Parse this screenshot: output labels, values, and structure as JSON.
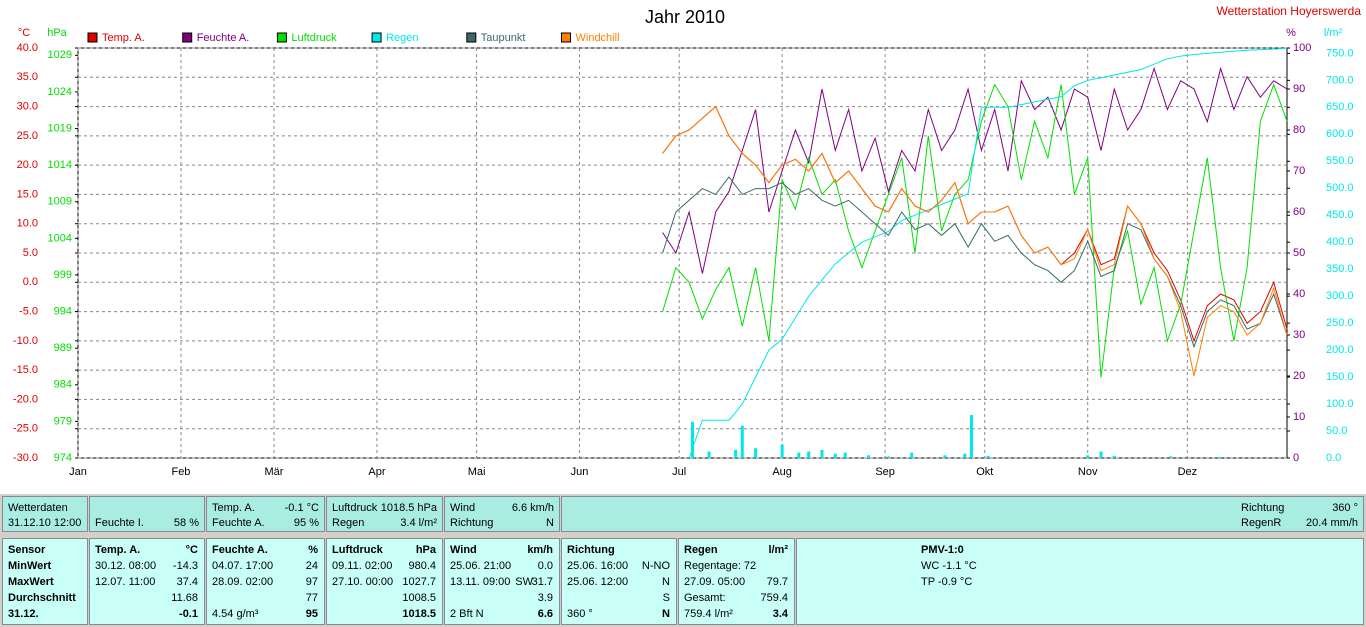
{
  "chart_data": {
    "type": "line",
    "title": "Jahr 2010",
    "station": "Wetterstation Hoyerswerda",
    "y_label": "°C",
    "y3_label": "hPa",
    "y2_label": "%",
    "y4_label": "l/m²",
    "xlim": [
      1,
      365
    ],
    "xticks": [
      {
        "value": 1,
        "label": "Jan"
      },
      {
        "value": 32,
        "label": "Feb"
      },
      {
        "value": 60,
        "label": "Mär"
      },
      {
        "value": 91,
        "label": "Apr"
      },
      {
        "value": 121,
        "label": "Mai"
      },
      {
        "value": 152,
        "label": "Jun"
      },
      {
        "value": 182,
        "label": "Jul"
      },
      {
        "value": 213,
        "label": "Aug"
      },
      {
        "value": 244,
        "label": "Sep"
      },
      {
        "value": 274,
        "label": "Okt"
      },
      {
        "value": 305,
        "label": "Nov"
      },
      {
        "value": 335,
        "label": "Dez"
      }
    ],
    "ylim": [
      -30,
      40
    ],
    "yticks": [
      {
        "value": -30,
        "label": "-30.0"
      },
      {
        "value": -25,
        "label": "-25.0"
      },
      {
        "value": -20,
        "label": "-20.0"
      },
      {
        "value": -15,
        "label": "-15.0"
      },
      {
        "value": -10,
        "label": "-10.0"
      },
      {
        "value": -5,
        "label": "-5.0"
      },
      {
        "value": 0,
        "label": "0.0"
      },
      {
        "value": 5,
        "label": "5.0"
      },
      {
        "value": 10,
        "label": "10.0"
      },
      {
        "value": 15,
        "label": "15.0"
      },
      {
        "value": 20,
        "label": "20.0"
      },
      {
        "value": 25,
        "label": "25.0"
      },
      {
        "value": 30,
        "label": "30.0"
      },
      {
        "value": 35,
        "label": "35.0"
      },
      {
        "value": 40,
        "label": "40.0"
      }
    ],
    "y3lim": [
      974,
      1030
    ],
    "y3ticks": [
      974,
      979,
      984,
      989,
      994,
      999,
      1004,
      1009,
      1014,
      1019,
      1024,
      1029
    ],
    "y2lim": [
      0,
      100
    ],
    "y2ticks": [
      0,
      10,
      20,
      30,
      40,
      50,
      60,
      70,
      80,
      90,
      100
    ],
    "y4lim": [
      0,
      760
    ],
    "y4ticks": [
      {
        "value": 0,
        "label": "0.0"
      },
      {
        "value": 50,
        "label": "50.0"
      },
      {
        "value": 100,
        "label": "100.0"
      },
      {
        "value": 150,
        "label": "150.0"
      },
      {
        "value": 200,
        "label": "200.0"
      },
      {
        "value": 250,
        "label": "250.0"
      },
      {
        "value": 300,
        "label": "300.0"
      },
      {
        "value": 350,
        "label": "350.0"
      },
      {
        "value": 400,
        "label": "400.0"
      },
      {
        "value": 450,
        "label": "450.0"
      },
      {
        "value": 500,
        "label": "500.0"
      },
      {
        "value": 550,
        "label": "550.0"
      },
      {
        "value": 600,
        "label": "600.0"
      },
      {
        "value": 650,
        "label": "650.0"
      },
      {
        "value": 700,
        "label": "700.0"
      },
      {
        "value": 750,
        "label": "750.0"
      }
    ],
    "grid": true,
    "x": [
      177,
      181,
      185,
      189,
      193,
      197,
      201,
      205,
      209,
      213,
      217,
      221,
      225,
      229,
      233,
      237,
      241,
      245,
      249,
      253,
      257,
      261,
      265,
      269,
      273,
      277,
      281,
      285,
      289,
      293,
      297,
      301,
      305,
      309,
      313,
      317,
      321,
      325,
      329,
      333,
      337,
      341,
      345,
      349,
      353,
      357,
      361,
      365
    ],
    "series": [
      {
        "name": "Temp. A.",
        "color": "#e00000",
        "axis": "y",
        "values": [
          22,
          25,
          26,
          28,
          30,
          25,
          22,
          20,
          17,
          20,
          21,
          19,
          22,
          17,
          19,
          16,
          13,
          12,
          16,
          13,
          12,
          14,
          17,
          10,
          12,
          12,
          13,
          8,
          5,
          6,
          3,
          5,
          9,
          3,
          4,
          13,
          10,
          5,
          2,
          -3,
          -10,
          -4,
          -2,
          -3,
          -7,
          -5,
          0,
          -8
        ]
      },
      {
        "name": "Feuchte A.",
        "color": "#800080",
        "axis": "y2",
        "values": [
          55,
          50,
          60,
          45,
          60,
          65,
          75,
          85,
          60,
          70,
          80,
          72,
          90,
          75,
          85,
          70,
          78,
          65,
          75,
          70,
          85,
          75,
          80,
          90,
          75,
          85,
          70,
          92,
          85,
          88,
          80,
          90,
          88,
          75,
          90,
          80,
          85,
          95,
          85,
          92,
          90,
          82,
          95,
          85,
          93,
          88,
          92,
          90
        ]
      },
      {
        "name": "Luftdruck",
        "color": "#00e000",
        "axis": "y3",
        "values": [
          994,
          1000,
          998,
          993,
          997,
          1000,
          992,
          1000,
          990,
          1012,
          1008,
          1015,
          1010,
          1012,
          1005,
          1000,
          1005,
          1010,
          1015,
          1002,
          1018,
          1005,
          1010,
          1012,
          1020,
          1025,
          1022,
          1012,
          1020,
          1015,
          1025,
          1010,
          1015,
          985,
          1000,
          1005,
          995,
          1000,
          990,
          995,
          1005,
          1015,
          1000,
          990,
          1000,
          1020,
          1025,
          1020
        ]
      },
      {
        "name": "Regen",
        "color": "#00e8e8",
        "axis": "y4",
        "values": [
          null,
          null,
          0,
          70,
          70,
          70,
          100,
          150,
          200,
          220,
          260,
          300,
          330,
          360,
          380,
          400,
          410,
          420,
          440,
          450,
          460,
          470,
          480,
          490,
          650,
          650,
          650,
          655,
          660,
          665,
          670,
          690,
          700,
          705,
          710,
          715,
          720,
          730,
          740,
          745,
          748,
          750,
          752,
          754,
          756,
          757,
          758,
          759.4
        ]
      },
      {
        "name": "Taupunkt",
        "color": "#3a6a6a",
        "axis": "y",
        "values": [
          5,
          12,
          14,
          16,
          15,
          18,
          15,
          16,
          16,
          17,
          15,
          16,
          14,
          13,
          14,
          12,
          10,
          8,
          12,
          9,
          10,
          8,
          10,
          6,
          10,
          7,
          8,
          5,
          3,
          2,
          0,
          2,
          7,
          1,
          2,
          10,
          9,
          4,
          1,
          -4,
          -11,
          -5,
          -3,
          -4,
          -8,
          -7,
          -2,
          -9
        ]
      },
      {
        "name": "Windchill",
        "color": "#ff8000",
        "axis": "y",
        "values": [
          22,
          25,
          26,
          28,
          30,
          25,
          22,
          20,
          17,
          20,
          21,
          19,
          22,
          17,
          19,
          16,
          13,
          12,
          16,
          13,
          12,
          14,
          17,
          10,
          12,
          12,
          13,
          8,
          5,
          6,
          3,
          4,
          9,
          2,
          3,
          13,
          10,
          4,
          1,
          -5,
          -16,
          -6,
          -4,
          -5,
          -9,
          -7,
          -1,
          -9
        ]
      }
    ],
    "daily_rain": {
      "color": "#00e8e8",
      "axis": "y4",
      "x": [
        186,
        191,
        199,
        201,
        205,
        213,
        218,
        221,
        225,
        229,
        232,
        239,
        245,
        252,
        262,
        268,
        270,
        275,
        305,
        309,
        313,
        330,
        345
      ],
      "values": [
        67,
        12,
        15,
        60,
        18,
        25,
        10,
        12,
        15,
        8,
        10,
        5,
        3,
        10,
        5,
        8,
        79.7,
        4,
        5,
        12,
        4,
        3,
        2
      ]
    }
  },
  "panel": {
    "top": [
      {
        "rows": [
          {
            "left": "Wetterdaten"
          },
          {
            "left": "31.12.10 12:00"
          }
        ]
      },
      {
        "rows": [
          {
            "left": "Feuchte I.",
            "right": "58 %"
          }
        ]
      },
      {
        "rows": [
          {
            "left": "Temp. A.",
            "right": "-0.1 °C"
          },
          {
            "left": "Feuchte A.",
            "right": "95 %"
          }
        ]
      },
      {
        "rows": [
          {
            "left": "Luftdruck",
            "right": "1018.5 hPa"
          },
          {
            "left": "Regen",
            "right": "3.4 l/m²"
          }
        ]
      },
      {
        "rows": [
          {
            "left": "Wind",
            "right": "6.6 km/h"
          },
          {
            "left": "Richtung",
            "right": "N"
          }
        ]
      },
      {
        "rows": [
          {
            "left": "Richtung",
            "right": "360 °"
          },
          {
            "left": "RegenR",
            "right": "20.4 mm/h"
          }
        ]
      }
    ],
    "bottom": [
      {
        "rows": [
          {
            "left": "Sensor"
          },
          {
            "left": "MinWert"
          },
          {
            "left": "MaxWert"
          },
          {
            "left": "Durchschnitt"
          },
          {
            "left": "31.12."
          }
        ]
      },
      {
        "rows": [
          {
            "left": "Temp. A.",
            "right": "°C"
          },
          {
            "left": "30.12.  08:00",
            "right": "-14.3"
          },
          {
            "left": "12.07.  11:00",
            "right": "37.4"
          },
          {
            "right": "11.68"
          },
          {
            "right": "-0.1"
          }
        ]
      },
      {
        "rows": [
          {
            "left": "Feuchte A.",
            "right": "%"
          },
          {
            "left": "04.07.  17:00",
            "right": "24"
          },
          {
            "left": "28.09.  02:00",
            "right": "97"
          },
          {
            "right": "77"
          },
          {
            "left": "4.54 g/m³",
            "right": "95"
          }
        ]
      },
      {
        "rows": [
          {
            "left": "Luftdruck",
            "right": "hPa"
          },
          {
            "left": "09.11.  02:00",
            "right": "980.4"
          },
          {
            "left": "27.10.  00:00",
            "right": "1027.7"
          },
          {
            "right": "1008.5"
          },
          {
            "right": "1018.5"
          }
        ]
      },
      {
        "rows": [
          {
            "left": "Wind",
            "right": "km/h"
          },
          {
            "left": "25.06.  21:00",
            "right": "0.0"
          },
          {
            "left": "13.11.  09:00",
            "mid": "SW",
            "right": "31.7"
          },
          {
            "right": "3.9"
          },
          {
            "left": "2 Bft N",
            "right": "6.6"
          }
        ]
      },
      {
        "rows": [
          {
            "left": "Richtung"
          },
          {
            "left": "25.06.  16:00",
            "right": "N-NO"
          },
          {
            "left": "25.06.  12:00",
            "right": "N"
          },
          {
            "right": "S"
          },
          {
            "left": "360 °",
            "right": "N"
          }
        ]
      },
      {
        "rows": [
          {
            "left": "Regen",
            "right": "l/m²"
          },
          {
            "left": "Regentage: 72"
          },
          {
            "left": "27.09.  05:00",
            "right": "79.7"
          },
          {
            "left": "Gesamt:",
            "right": "759.4"
          },
          {
            "left": "759.4 l/m²",
            "right": "3.4"
          }
        ]
      },
      {
        "rows": [
          {
            "left": "PMV-1:0"
          },
          {
            "left": "WC -1.1 °C"
          },
          {
            "left": "TP -0.9 °C"
          }
        ]
      }
    ]
  }
}
